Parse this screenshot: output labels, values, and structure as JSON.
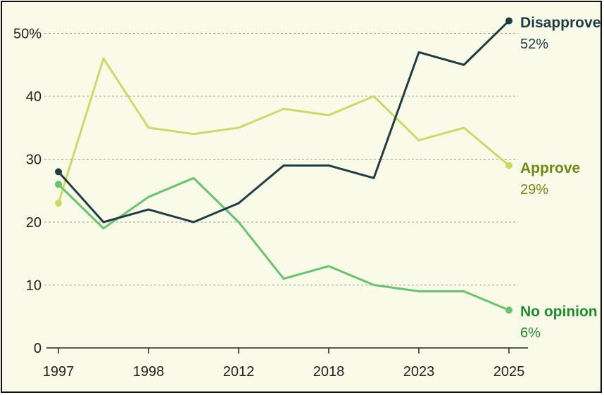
{
  "chart_data": {
    "type": "line",
    "x_tick_labels": [
      "1997",
      "1998",
      "2012",
      "2018",
      "2023",
      "2025"
    ],
    "x_tick_positions": [
      0,
      2,
      4,
      6,
      8,
      10
    ],
    "y_tick_labels": [
      "0",
      "10",
      "20",
      "30",
      "40",
      "50%"
    ],
    "y_ticks": [
      0,
      10,
      20,
      30,
      40,
      50
    ],
    "ylim": [
      0,
      50
    ],
    "grid": true,
    "series": [
      {
        "key": "disapprove",
        "name": "Disapprove",
        "end_label": "52%",
        "color": "#1f3d45",
        "values": [
          28,
          20,
          22,
          20,
          23,
          29,
          29,
          27,
          47,
          45,
          52
        ]
      },
      {
        "key": "approve",
        "name": "Approve",
        "end_label": "29%",
        "color": "#c8dc64",
        "label_color": "#6f8a12",
        "values": [
          23,
          46,
          35,
          34,
          35,
          38,
          37,
          40,
          33,
          35,
          29
        ]
      },
      {
        "key": "no_opinion",
        "name": "No opinion",
        "end_label": "6%",
        "color": "#66c46a",
        "label_color": "#1c8f2a",
        "values": [
          26,
          19,
          24,
          27,
          20,
          11,
          13,
          10,
          9,
          9,
          6
        ]
      }
    ]
  }
}
